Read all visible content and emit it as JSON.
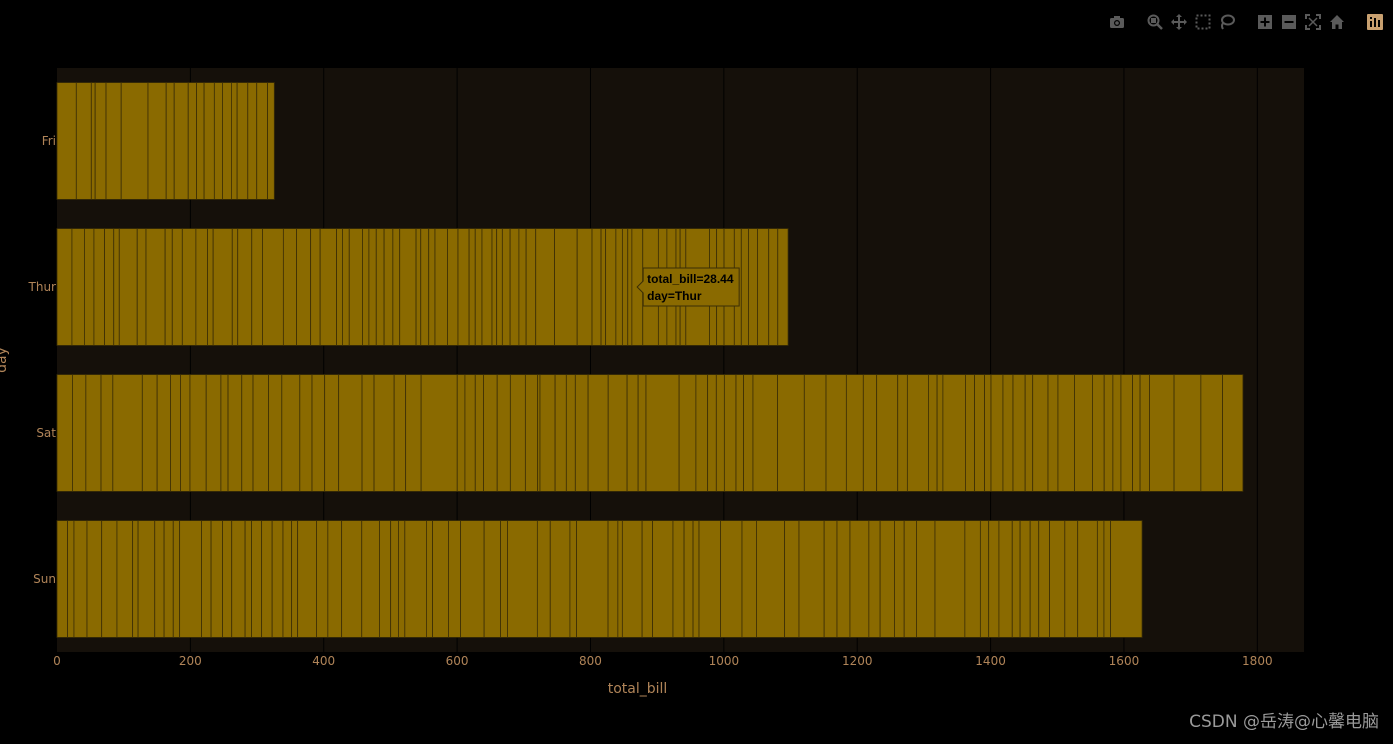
{
  "chart_data": {
    "type": "bar",
    "orientation": "horizontal",
    "xlabel": "total_bill",
    "ylabel": "day",
    "categories": [
      "Fri",
      "Thur",
      "Sat",
      "Sun"
    ],
    "values": [
      325.88,
      1096.33,
      1778.4,
      1627.16
    ],
    "xlim": [
      0,
      1870
    ],
    "xticks": [
      0,
      200,
      400,
      600,
      800,
      1000,
      1200,
      1400,
      1600,
      1800
    ],
    "grid": true,
    "segments": {
      "Fri": [
        28.97,
        22.49,
        5.75,
        16.32,
        22.75,
        40.17,
        27.28,
        12.03,
        21.01,
        12.46,
        11.35,
        15.38,
        12.16,
        13.42,
        8.58,
        15.98,
        13.42,
        16.27,
        10.09
      ],
      "Thur": [
        27.2,
        22.76,
        17.29,
        19.44,
        16.66,
        10.07,
        32.68,
        15.98,
        34.83,
        13.03,
        18.28,
        24.71,
        21.16,
        10.29,
        34.81,
        9.94,
        25.56,
        19.49,
        38.07,
        23.95,
        25.71,
        17.31,
        29.93,
        10.65,
        12.43,
        24.08,
        11.69,
        13.42,
        14.26,
        15.95,
        12.48,
        29.8,
        8.52,
        14.52,
        11.38,
        22.82,
        19.08,
        20.27,
        11.17,
        12.26,
        18.26,
        8.51,
        10.33,
        14.15,
        16.0,
        13.16,
        17.47,
        34.3,
        41.19,
        27.05,
        16.43,
        8.35,
        18.64,
        11.87,
        9.78,
        7.51,
        19.81,
        28.44,
        15.48,
        16.58,
        7.56,
        10.34,
        43.11,
        13.0,
        13.51,
        18.71,
        12.74,
        13.0,
        16.4,
        20.53,
        16.47,
        18.78
      ],
      "Sat": [
        20.65,
        17.92,
        20.29,
        15.77,
        39.42,
        19.82,
        17.81,
        13.37,
        12.69,
        21.7,
        19.65,
        9.55,
        18.35,
        15.06,
        20.69,
        17.78,
        24.06,
        16.31,
        16.93,
        18.69,
        31.27,
        16.04,
        26.88,
        15.36,
        20.69,
        48.27,
        10.29,
        13.81,
        11.02,
        18.29,
        17.59,
        20.08,
        16.45,
        3.07,
        20.23,
        15.01,
        12.02,
        17.07,
        26.86,
        25.28,
        14.73,
        10.51,
        44.3,
        22.42,
        15.69,
        11.61,
        10.77,
        15.53,
        10.07,
        12.6,
        32.83,
        35.83,
        29.03,
        27.18,
        22.67,
        17.82,
        28.17,
        12.9,
        28.15,
        11.59,
        7.74,
        30.14,
        12.16,
        13.42,
        8.58,
        15.98,
        13.42,
        16.27,
        10.09,
        20.45,
        13.28,
        22.12,
        24.01,
        15.69,
        11.61,
        10.77,
        15.53,
        10.07,
        12.6,
        32.83,
        35.83,
        29.03,
        27.18
      ],
      "Sun": [
        16.99,
        10.34,
        21.01,
        23.68,
        24.59,
        25.29,
        8.77,
        26.88,
        15.04,
        14.78,
        10.27,
        35.26,
        15.42,
        18.43,
        14.83,
        21.58,
        10.33,
        16.29,
        16.97,
        17.46,
        13.94,
        9.68,
        30.4,
        18.29,
        22.23,
        32.4,
        28.55,
        18.04,
        12.54,
        10.29,
        34.81,
        9.94,
        25.56,
        19.49,
        38.01,
        26.41,
        11.24,
        48.17,
        20.76,
        31.71,
        10.63,
        50.81,
        15.81,
        7.25,
        31.85,
        16.82,
        32.9,
        17.89,
        14.48,
        9.6,
        34.63,
        34.65,
        23.33,
        45.35,
        23.17,
        40.55,
        20.69,
        20.9,
        30.46,
        18.15,
        23.1,
        15.69,
        19.77,
        29.85,
        48.17,
        25.0,
        13.39,
        16.49,
        21.5,
        12.66,
        16.21,
        13.81,
        17.51,
        24.52,
        20.76,
        31.71,
        10.59,
        10.63,
        50.81
      ]
    },
    "tooltip": {
      "line1": "total_bill=28.44",
      "line2": "day=Thur",
      "category": "Thur",
      "x_value": 870
    }
  },
  "colors": {
    "page_bg": "#000000",
    "plot_bg": "#15100a",
    "bar_fill": "#8a6a00",
    "bar_stroke": "#3b2e06",
    "grid": "#000000",
    "tick_text": "#b08458",
    "axis_title": "#b08458",
    "tooltip_bg": "#8a6a00",
    "tooltip_border": "#3b2e06",
    "tooltip_text": "#000000",
    "modebar_icon": "#5a5a5a",
    "modebar_active": "#c8a070"
  },
  "modebar": {
    "icons": [
      "camera-icon",
      "zoom-icon",
      "pan-icon",
      "box-select-icon",
      "lasso-icon",
      "zoom-in-icon",
      "zoom-out-icon",
      "autoscale-icon",
      "reset-axes-icon",
      "plotly-logo-icon"
    ]
  },
  "watermark": "CSDN @岳涛@心馨电脑"
}
